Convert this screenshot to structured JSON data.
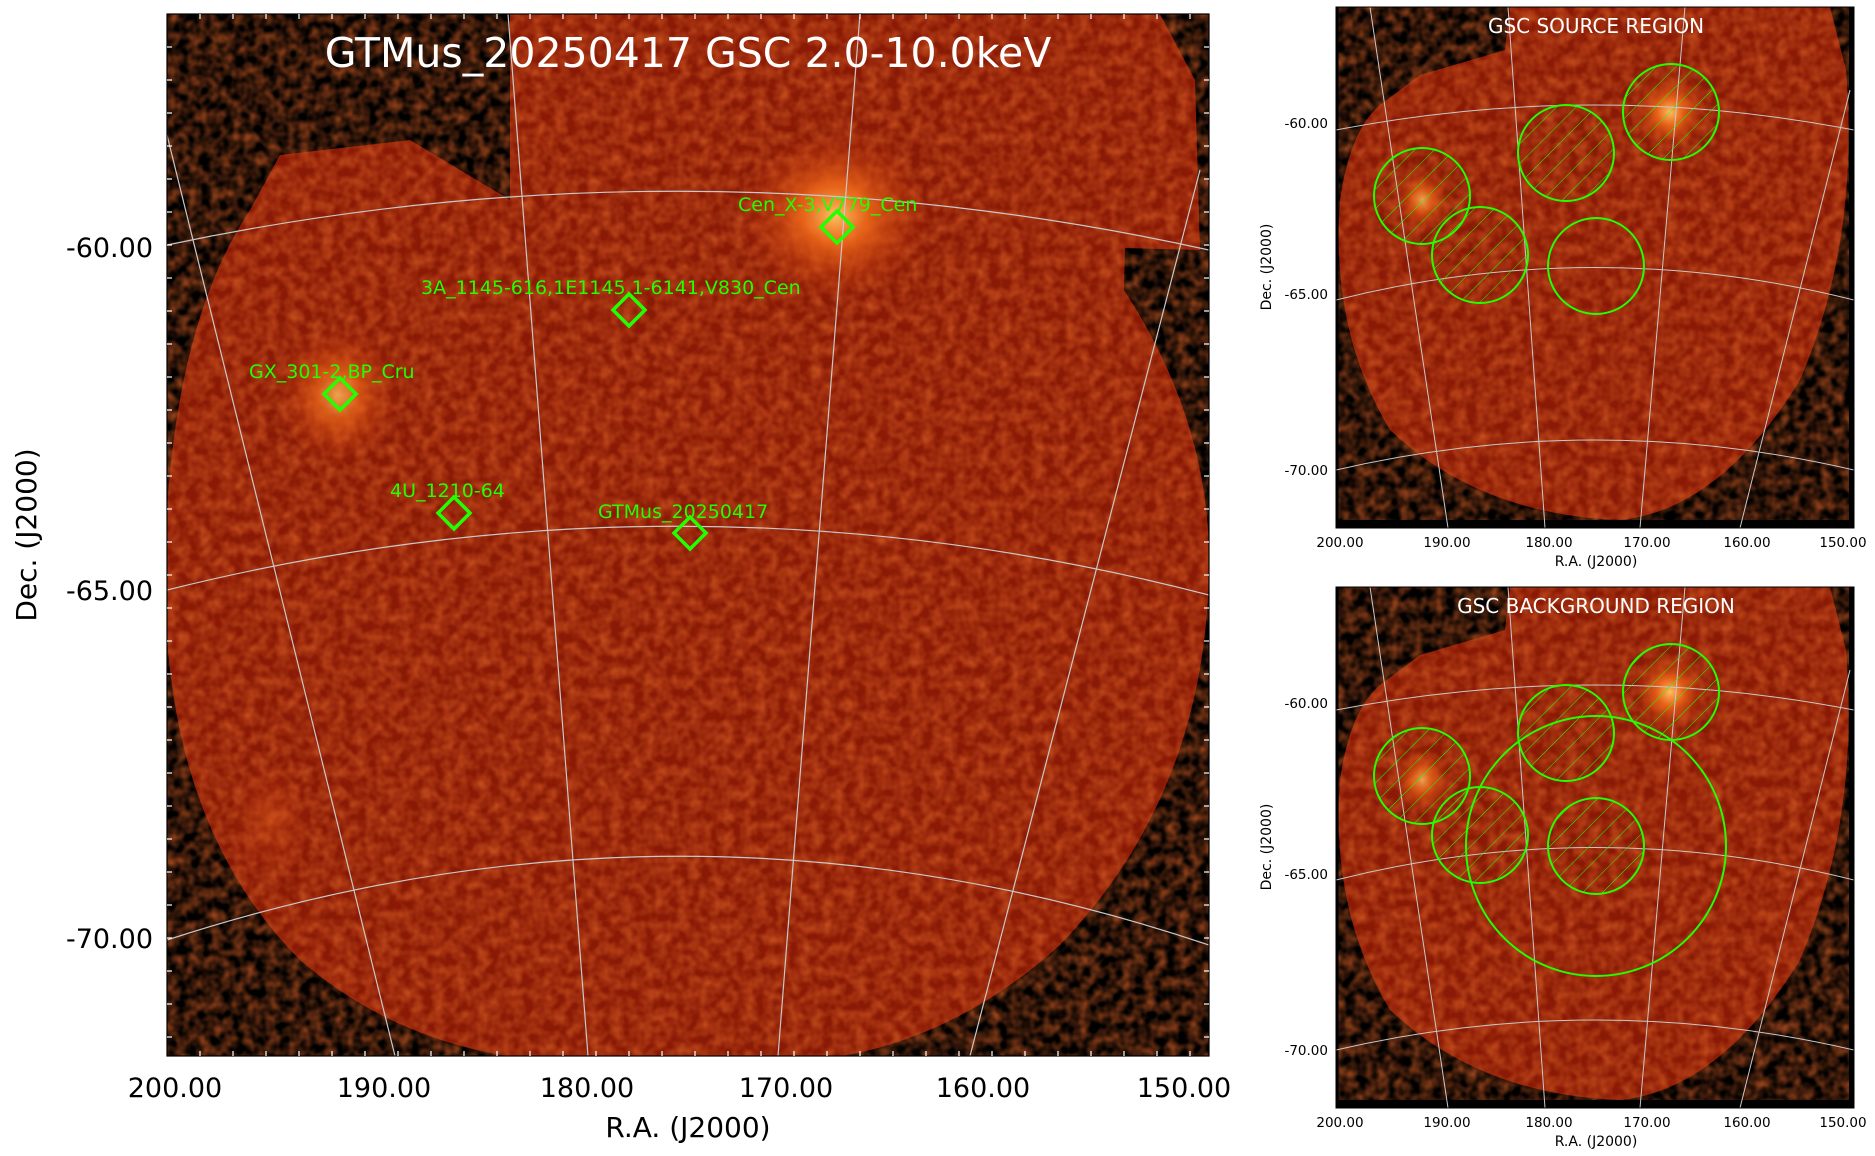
{
  "main": {
    "title": "GTMus_20250417 GSC 2.0-10.0keV",
    "xlabel": "R.A. (J2000)",
    "ylabel": "Dec. (J2000)",
    "xticks": [
      "200.00",
      "190.00",
      "180.00",
      "170.00",
      "160.00",
      "150.00"
    ],
    "yticks": [
      "-60.00",
      "-65.00",
      "-70.00"
    ],
    "sources": [
      {
        "name": "Cen_X-3,V779_Cen"
      },
      {
        "name": "3A_1145-616,1E1145.1-6141,V830_Cen"
      },
      {
        "name": "GX_301-2,BP_Cru"
      },
      {
        "name": "4U_1210-64"
      },
      {
        "name": "GTMus_20250417"
      }
    ]
  },
  "source_panel": {
    "title": "GSC SOURCE REGION",
    "xlabel": "R.A. (J2000)",
    "ylabel": "Dec. (J2000)",
    "xticks": [
      "200.00",
      "190.00",
      "180.00",
      "170.00",
      "160.00",
      "150.00"
    ],
    "yticks": [
      "-60.00",
      "-65.00",
      "-70.00"
    ]
  },
  "background_panel": {
    "title": "GSC BACKGROUND REGION",
    "xlabel": "R.A. (J2000)",
    "ylabel": "Dec. (J2000)",
    "xticks": [
      "200.00",
      "190.00",
      "180.00",
      "170.00",
      "160.00",
      "150.00"
    ],
    "yticks": [
      "-60.00",
      "-65.00",
      "-70.00"
    ]
  },
  "colors": {
    "background": "#000000",
    "sky": "#8a1a05",
    "hot": "#ff9a2a",
    "marker": "#22ff00",
    "grid": "#c8c8c8"
  }
}
